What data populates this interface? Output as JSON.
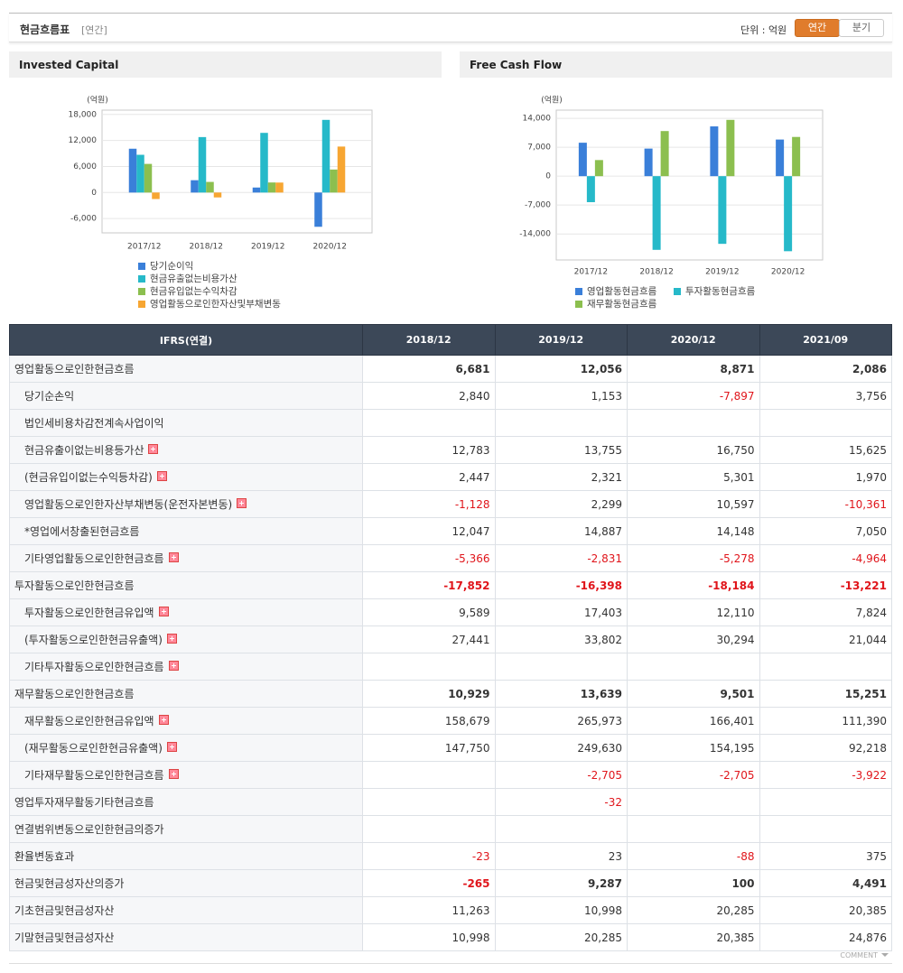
{
  "header": {
    "title": "현금흐름표",
    "period": "[연간]",
    "unit": "단위 : 억원",
    "tabs": [
      "연간",
      "분기"
    ]
  },
  "chart_data": [
    {
      "type": "bar",
      "title": "Invested Capital",
      "y_label": "(억원)",
      "categories": [
        "2017/12",
        "2018/12",
        "2019/12",
        "2020/12"
      ],
      "ylim": [
        -9300,
        19000
      ],
      "yticks": [
        {
          "value": 18000,
          "label": "18,000"
        },
        {
          "value": 12000,
          "label": "12,000"
        },
        {
          "value": 6000,
          "label": "6,000"
        },
        0,
        {
          "value": -6000,
          "label": "-6,000"
        }
      ],
      "grid": true,
      "legend": "bottom",
      "series": [
        {
          "name": "당기순이익",
          "color": "#3a7fd9",
          "values": [
            10100,
            2840,
            1153,
            -7897
          ]
        },
        {
          "name": "현금유출없는비용가산",
          "color": "#26b9c9",
          "values": [
            8700,
            12783,
            13755,
            16750
          ]
        },
        {
          "name": "현금유입없는수익차감",
          "color": "#8cbf4f",
          "values": [
            6600,
            2447,
            2321,
            5301
          ]
        },
        {
          "name": "영업활동으로인한자산및부채변동",
          "color": "#f7a632",
          "values": [
            -1500,
            -1128,
            2299,
            10597
          ]
        }
      ]
    },
    {
      "type": "bar",
      "title": "Free Cash Flow",
      "y_label": "(억원)",
      "categories": [
        "2017/12",
        "2018/12",
        "2019/12",
        "2020/12"
      ],
      "ylim": [
        -20300,
        16000
      ],
      "yticks": [
        {
          "value": 14000,
          "label": "14,000"
        },
        {
          "value": 7000,
          "label": "7,000"
        },
        0,
        {
          "value": -7000,
          "label": "-7,000"
        },
        {
          "value": -14000,
          "label": "-14,000"
        }
      ],
      "grid": true,
      "legend": "bottom",
      "series": [
        {
          "name": "영업활동현금흐름",
          "color": "#3a7fd9",
          "values": [
            8100,
            6681,
            12056,
            8871
          ]
        },
        {
          "name": "투자활동현금흐름",
          "color": "#26b9c9",
          "values": [
            -6300,
            -17852,
            -16398,
            -18184
          ]
        },
        {
          "name": "재무활동현금흐름",
          "color": "#8cbf4f",
          "values": [
            3900,
            10929,
            13639,
            9501
          ]
        }
      ]
    }
  ],
  "table": {
    "corner": "IFRS(연결)",
    "columns": [
      "2018/12",
      "2019/12",
      "2020/12",
      "2021/09"
    ],
    "rows": [
      {
        "label": "영업활동으로인한현금흐름",
        "level": 0,
        "bold": true,
        "expandable": false,
        "values": [
          "6,681",
          "12,056",
          "8,871",
          "2,086"
        ]
      },
      {
        "label": "당기순손익",
        "level": 1,
        "bold": false,
        "expandable": false,
        "values": [
          "2,840",
          "1,153",
          "-7,897",
          "3,756"
        ]
      },
      {
        "label": "법인세비용차감전계속사업이익",
        "level": 1,
        "bold": false,
        "expandable": false,
        "values": [
          null,
          null,
          null,
          null
        ]
      },
      {
        "label": "현금유출이없는비용등가산",
        "level": 1,
        "bold": false,
        "expandable": true,
        "values": [
          "12,783",
          "13,755",
          "16,750",
          "15,625"
        ]
      },
      {
        "label": "(현금유입이없는수익등차감)",
        "level": 1,
        "bold": false,
        "expandable": true,
        "values": [
          "2,447",
          "2,321",
          "5,301",
          "1,970"
        ]
      },
      {
        "label": "영업활동으로인한자산부채변동(운전자본변동)",
        "level": 1,
        "bold": false,
        "expandable": true,
        "values": [
          "-1,128",
          "2,299",
          "10,597",
          "-10,361"
        ]
      },
      {
        "label": "*영업에서창출된현금흐름",
        "level": 1,
        "bold": false,
        "expandable": false,
        "values": [
          "12,047",
          "14,887",
          "14,148",
          "7,050"
        ]
      },
      {
        "label": "기타영업활동으로인한현금흐름",
        "level": 1,
        "bold": false,
        "expandable": true,
        "values": [
          "-5,366",
          "-2,831",
          "-5,278",
          "-4,964"
        ]
      },
      {
        "label": "투자활동으로인한현금흐름",
        "level": 0,
        "bold": true,
        "expandable": false,
        "values": [
          "-17,852",
          "-16,398",
          "-18,184",
          "-13,221"
        ]
      },
      {
        "label": "투자활동으로인한현금유입액",
        "level": 1,
        "bold": false,
        "expandable": true,
        "values": [
          "9,589",
          "17,403",
          "12,110",
          "7,824"
        ]
      },
      {
        "label": "(투자활동으로인한현금유출액)",
        "level": 1,
        "bold": false,
        "expandable": true,
        "values": [
          "27,441",
          "33,802",
          "30,294",
          "21,044"
        ]
      },
      {
        "label": "기타투자활동으로인한현금흐름",
        "level": 1,
        "bold": false,
        "expandable": true,
        "values": [
          null,
          null,
          null,
          null
        ]
      },
      {
        "label": "재무활동으로인한현금흐름",
        "level": 0,
        "bold": true,
        "expandable": false,
        "values": [
          "10,929",
          "13,639",
          "9,501",
          "15,251"
        ]
      },
      {
        "label": "재무활동으로인한현금유입액",
        "level": 1,
        "bold": false,
        "expandable": true,
        "values": [
          "158,679",
          "265,973",
          "166,401",
          "111,390"
        ]
      },
      {
        "label": "(재무활동으로인한현금유출액)",
        "level": 1,
        "bold": false,
        "expandable": true,
        "values": [
          "147,750",
          "249,630",
          "154,195",
          "92,218"
        ]
      },
      {
        "label": "기타재무활동으로인한현금흐름",
        "level": 1,
        "bold": false,
        "expandable": true,
        "values": [
          null,
          "-2,705",
          "-2,705",
          "-3,922"
        ]
      },
      {
        "label": "영업투자재무활동기타현금흐름",
        "level": 0,
        "bold": false,
        "expandable": false,
        "values": [
          null,
          "-32",
          null,
          null
        ]
      },
      {
        "label": "연결범위변동으로인한현금의증가",
        "level": 0,
        "bold": false,
        "expandable": false,
        "values": [
          null,
          null,
          null,
          null
        ]
      },
      {
        "label": "환율변동효과",
        "level": 0,
        "bold": false,
        "expandable": false,
        "values": [
          "-23",
          "23",
          "-88",
          "375"
        ]
      },
      {
        "label": "현금및현금성자산의증가",
        "level": 0,
        "bold": true,
        "expandable": false,
        "values": [
          "-265",
          "9,287",
          "100",
          "4,491"
        ]
      },
      {
        "label": "기초현금및현금성자산",
        "level": 0,
        "bold": false,
        "expandable": false,
        "values": [
          "11,263",
          "10,998",
          "20,285",
          "20,385"
        ]
      },
      {
        "label": "기말현금및현금성자산",
        "level": 0,
        "bold": false,
        "expandable": false,
        "values": [
          "10,998",
          "20,285",
          "20,385",
          "24,876"
        ]
      }
    ]
  },
  "footer": {
    "comment": "COMMENT"
  }
}
